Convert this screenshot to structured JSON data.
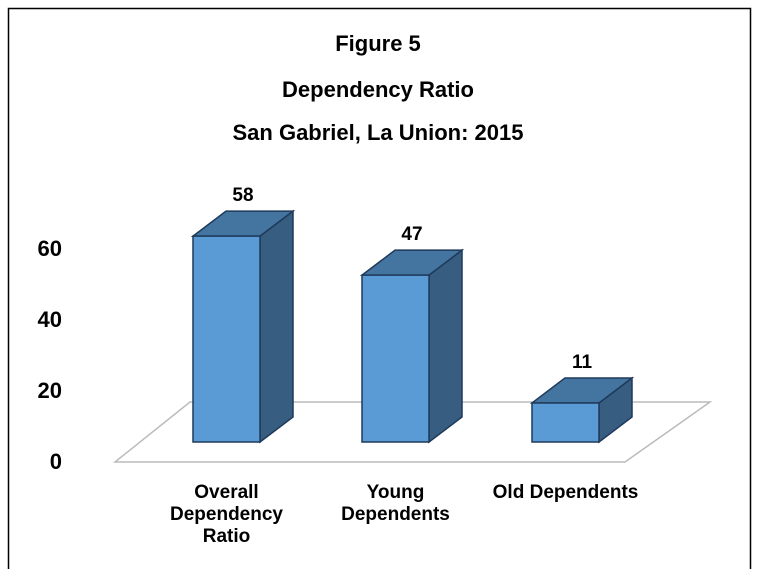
{
  "chart_data": {
    "type": "bar3d",
    "title": [
      "Figure 5",
      "Dependency Ratio",
      "San Gabriel, La Union: 2015"
    ],
    "categories": [
      "Overall Dependency Ratio",
      "Young Dependents",
      "Old Dependents"
    ],
    "values": [
      58,
      47,
      11
    ],
    "color": "#5b9bd5",
    "ylim": [
      0,
      70
    ],
    "yticks": [
      0,
      20,
      40,
      60
    ],
    "grid": false
  }
}
